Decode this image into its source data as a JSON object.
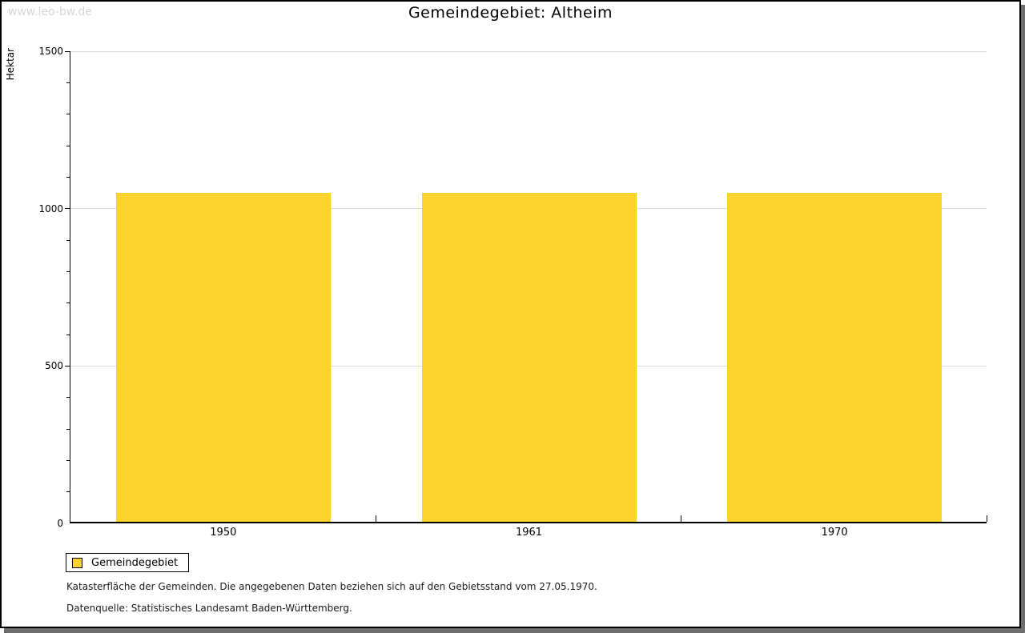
{
  "page": {
    "watermark": "www.leo-bw.de",
    "title": "Gemeindegebiet:  Altheim"
  },
  "chart_data": {
    "type": "bar",
    "title": "Gemeindegebiet: Altheim",
    "categories": [
      "1950",
      "1961",
      "1970"
    ],
    "series": [
      {
        "name": "Gemeindegebiet",
        "color": "#FCD32D",
        "values": [
          1044,
          1044,
          1044
        ]
      }
    ],
    "xlabel": "",
    "ylabel": "Hektar",
    "ylim": [
      0,
      1500
    ],
    "yticks": [
      0,
      500,
      1000,
      1500
    ],
    "minor_tick_step": 100,
    "grid": true,
    "legend_position": "bottom-left"
  },
  "legend": {
    "label": "Gemeindegebiet"
  },
  "footer": {
    "note": "Katasterfläche der Gemeinden. Die angegebenen Daten beziehen sich auf den Gebietsstand vom 27.05.1970.",
    "source": "Datenquelle: Statistisches Landesamt Baden-Württemberg."
  },
  "colors": {
    "bar": "#FCD32D",
    "grid": "#DCDCDC",
    "axis": "#000000",
    "watermark": "#D6D6D6",
    "shadow": "#6E6E6E"
  }
}
